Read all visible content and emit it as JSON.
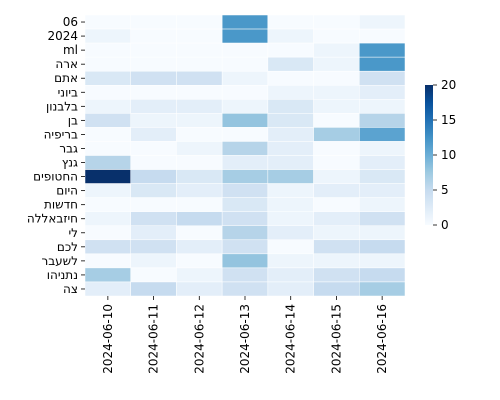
{
  "chart_data": {
    "type": "heatmap",
    "x_categories": [
      "2024-06-10",
      "2024-06-11",
      "2024-06-12",
      "2024-06-13",
      "2024-06-14",
      "2024-06-15",
      "2024-06-16"
    ],
    "y_categories": [
      "06",
      "2024",
      "ml",
      "ארה",
      "אתם",
      "ביוני",
      "בלבנון",
      "בן",
      "בריפיה",
      "גבר",
      "גנץ",
      "החטופים",
      "היום",
      "חדשות",
      "חיזבאללה",
      "לי",
      "לכם",
      "לשעבר",
      "נתניהו",
      "צה"
    ],
    "values": [
      [
        0,
        0,
        0,
        12,
        0,
        0,
        1
      ],
      [
        1,
        0,
        0,
        12,
        1,
        0,
        0
      ],
      [
        0,
        0,
        0,
        0,
        0,
        1,
        12
      ],
      [
        0,
        0,
        0,
        0,
        3,
        1,
        12
      ],
      [
        3,
        4,
        4,
        1,
        0,
        0,
        4
      ],
      [
        0,
        0,
        0,
        0,
        1,
        1,
        2
      ],
      [
        1,
        2,
        2,
        1,
        3,
        1,
        1
      ],
      [
        4,
        1,
        1,
        8,
        3,
        0,
        6
      ],
      [
        0,
        2,
        0,
        0,
        2,
        7,
        11
      ],
      [
        0,
        0,
        1,
        6,
        2,
        0,
        1
      ],
      [
        6,
        0,
        0,
        2,
        2,
        0,
        2
      ],
      [
        20,
        5,
        3,
        7,
        7,
        1,
        3
      ],
      [
        1,
        3,
        2,
        4,
        1,
        2,
        2
      ],
      [
        0,
        0,
        0,
        3,
        1,
        0,
        1
      ],
      [
        1,
        4,
        5,
        4,
        1,
        2,
        4
      ],
      [
        0,
        2,
        0,
        6,
        2,
        1,
        1
      ],
      [
        4,
        4,
        2,
        4,
        0,
        4,
        5
      ],
      [
        0,
        1,
        0,
        8,
        1,
        1,
        1
      ],
      [
        7,
        0,
        1,
        4,
        2,
        4,
        5
      ],
      [
        2,
        5,
        2,
        4,
        2,
        5,
        7
      ]
    ],
    "vmin": 0,
    "vmax": 20,
    "colorbar_ticks": [
      0,
      5,
      10,
      15,
      20
    ],
    "colormap": [
      "#f7fbff",
      "#deebf7",
      "#c6dbef",
      "#9ecae1",
      "#6baed6",
      "#4292c6",
      "#2171b5",
      "#08519c",
      "#08306b"
    ]
  }
}
